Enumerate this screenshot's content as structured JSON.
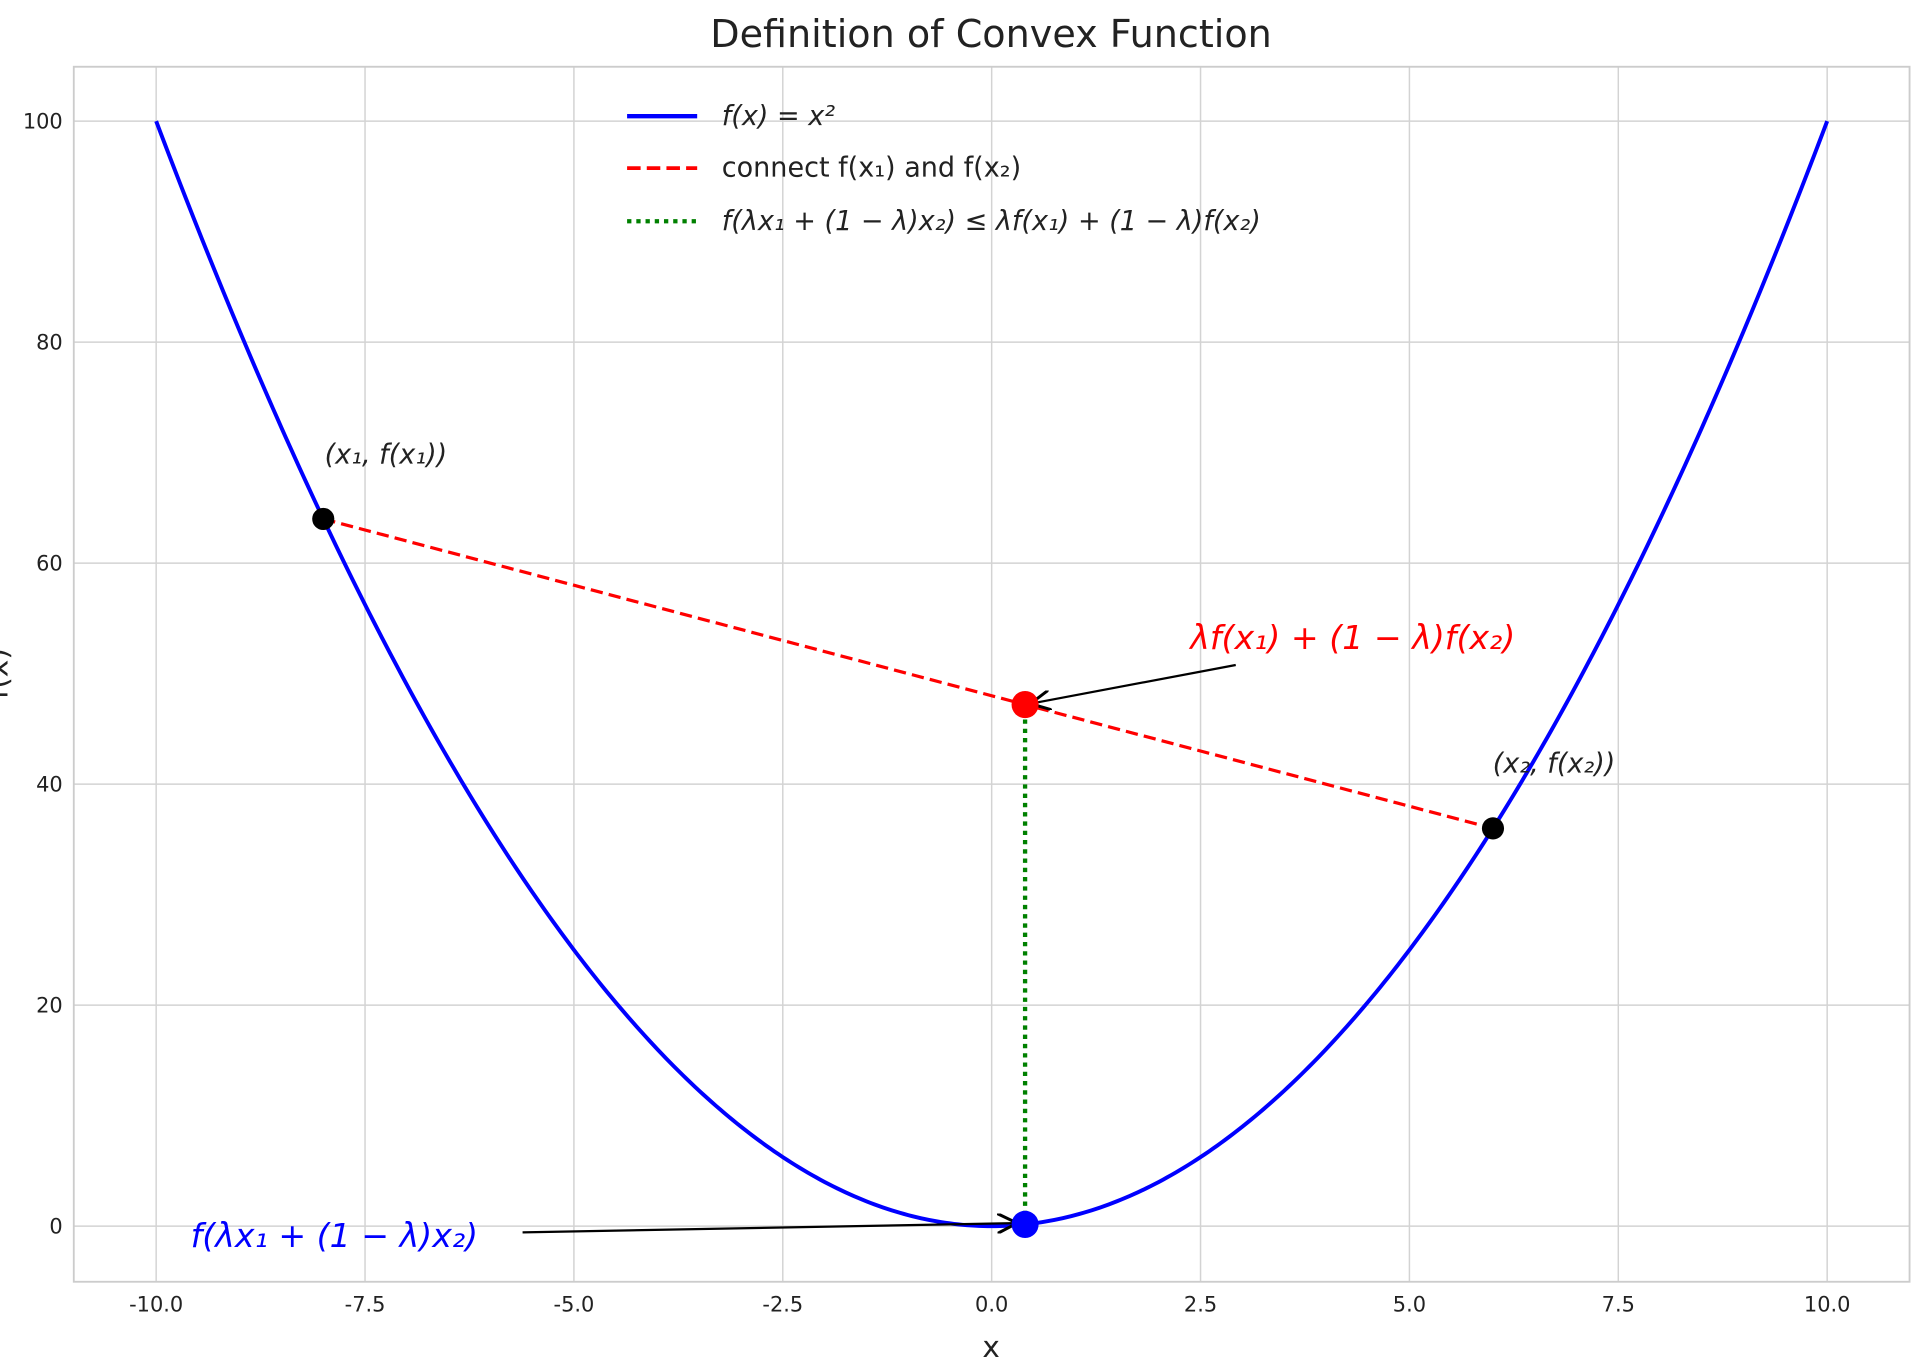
{
  "chart_data": {
    "type": "line",
    "title": "Definition of Convex Function",
    "xlabel": "x",
    "ylabel": "f(x)",
    "xlim": [
      -11,
      11
    ],
    "ylim": [
      -5,
      105
    ],
    "xticks": [
      "-10.0",
      "-7.5",
      "-5.0",
      "-2.5",
      "0.0",
      "2.5",
      "5.0",
      "7.5",
      "10.0"
    ],
    "xtick_values": [
      -10,
      -7.5,
      -5,
      -2.5,
      0,
      2.5,
      5,
      7.5,
      10
    ],
    "yticks": [
      "0",
      "20",
      "40",
      "60",
      "80",
      "100"
    ],
    "ytick_values": [
      0,
      20,
      40,
      60,
      80,
      100
    ],
    "grid": true,
    "legend_position": "top-center",
    "series": [
      {
        "name": "f(x) = x²",
        "style": "solid",
        "color": "#0000ff",
        "function": "x^2",
        "x_range": [
          -10,
          10
        ]
      },
      {
        "name": "connect f(x₁) and f(x₂)",
        "style": "dashed",
        "color": "#ff0000",
        "x": [
          -8,
          6
        ],
        "y": [
          64,
          36
        ]
      },
      {
        "name": "f(λx₁ + (1 − λ)x₂) ≤ λf(x₁) + (1 − λ)f(x₂)",
        "style": "dotted",
        "color": "#008000",
        "x": [
          0.4,
          0.4
        ],
        "y": [
          0.16,
          47.2
        ]
      }
    ],
    "points": [
      {
        "label": "(x₁, f(x₁))",
        "x": -8,
        "y": 64,
        "color": "#000000"
      },
      {
        "label": "(x₂, f(x₂))",
        "x": 6,
        "y": 36,
        "color": "#000000"
      },
      {
        "x": 0.4,
        "y": 47.2,
        "color": "#ff0000"
      },
      {
        "x": 0.4,
        "y": 0.16,
        "color": "#0000ff"
      }
    ],
    "annotations": [
      {
        "text": "λf(x₁) + (1 − λ)f(x₂)",
        "color": "#ff0000",
        "points_to": [
          0.4,
          47.2
        ]
      },
      {
        "text": "f(λx₁ + (1 − λ)x₂)",
        "color": "#0000ff",
        "points_to": [
          0.4,
          0.16
        ]
      }
    ]
  }
}
